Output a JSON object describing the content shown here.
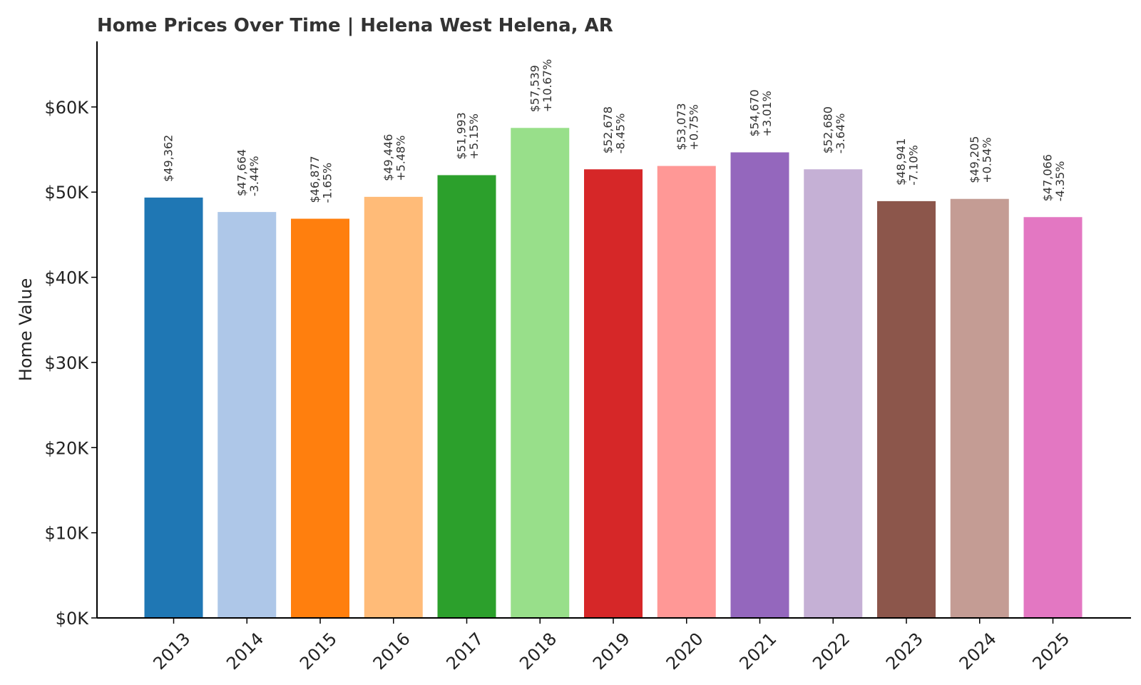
{
  "chart_data": {
    "type": "bar",
    "title": "Home Prices Over Time | Helena West Helena, AR",
    "xlabel": "",
    "ylabel": "Home Value",
    "ylim": [
      0,
      67700
    ],
    "yticks": [
      0,
      10000,
      20000,
      30000,
      40000,
      50000,
      60000
    ],
    "ytick_labels": [
      "$0K",
      "$10K",
      "$20K",
      "$30K",
      "$40K",
      "$50K",
      "$60K"
    ],
    "grid": false,
    "categories": [
      "2013",
      "2014",
      "2015",
      "2016",
      "2017",
      "2018",
      "2019",
      "2020",
      "2021",
      "2022",
      "2023",
      "2024",
      "2025"
    ],
    "values": [
      49362,
      47664,
      46877,
      49446,
      51993,
      57539,
      52678,
      53073,
      54670,
      52680,
      48941,
      49205,
      47066
    ],
    "value_labels": [
      "$49,362",
      "$47,664",
      "$46,877",
      "$49,446",
      "$51,993",
      "$57,539",
      "$52,678",
      "$53,073",
      "$54,670",
      "$52,680",
      "$48,941",
      "$49,205",
      "$47,066"
    ],
    "change_labels": [
      "",
      "-3.44%",
      "-1.65%",
      "+5.48%",
      "+5.15%",
      "+10.67%",
      "-8.45%",
      "+0.75%",
      "+3.01%",
      "-3.64%",
      "-7.10%",
      "+0.54%",
      "-4.35%"
    ],
    "colors": [
      "#1f77b4",
      "#aec7e8",
      "#ff7f0e",
      "#ffbb78",
      "#2ca02c",
      "#98df8a",
      "#d62728",
      "#ff9896",
      "#9467bd",
      "#c5b0d5",
      "#8c564b",
      "#c49c94",
      "#e377c2"
    ]
  }
}
